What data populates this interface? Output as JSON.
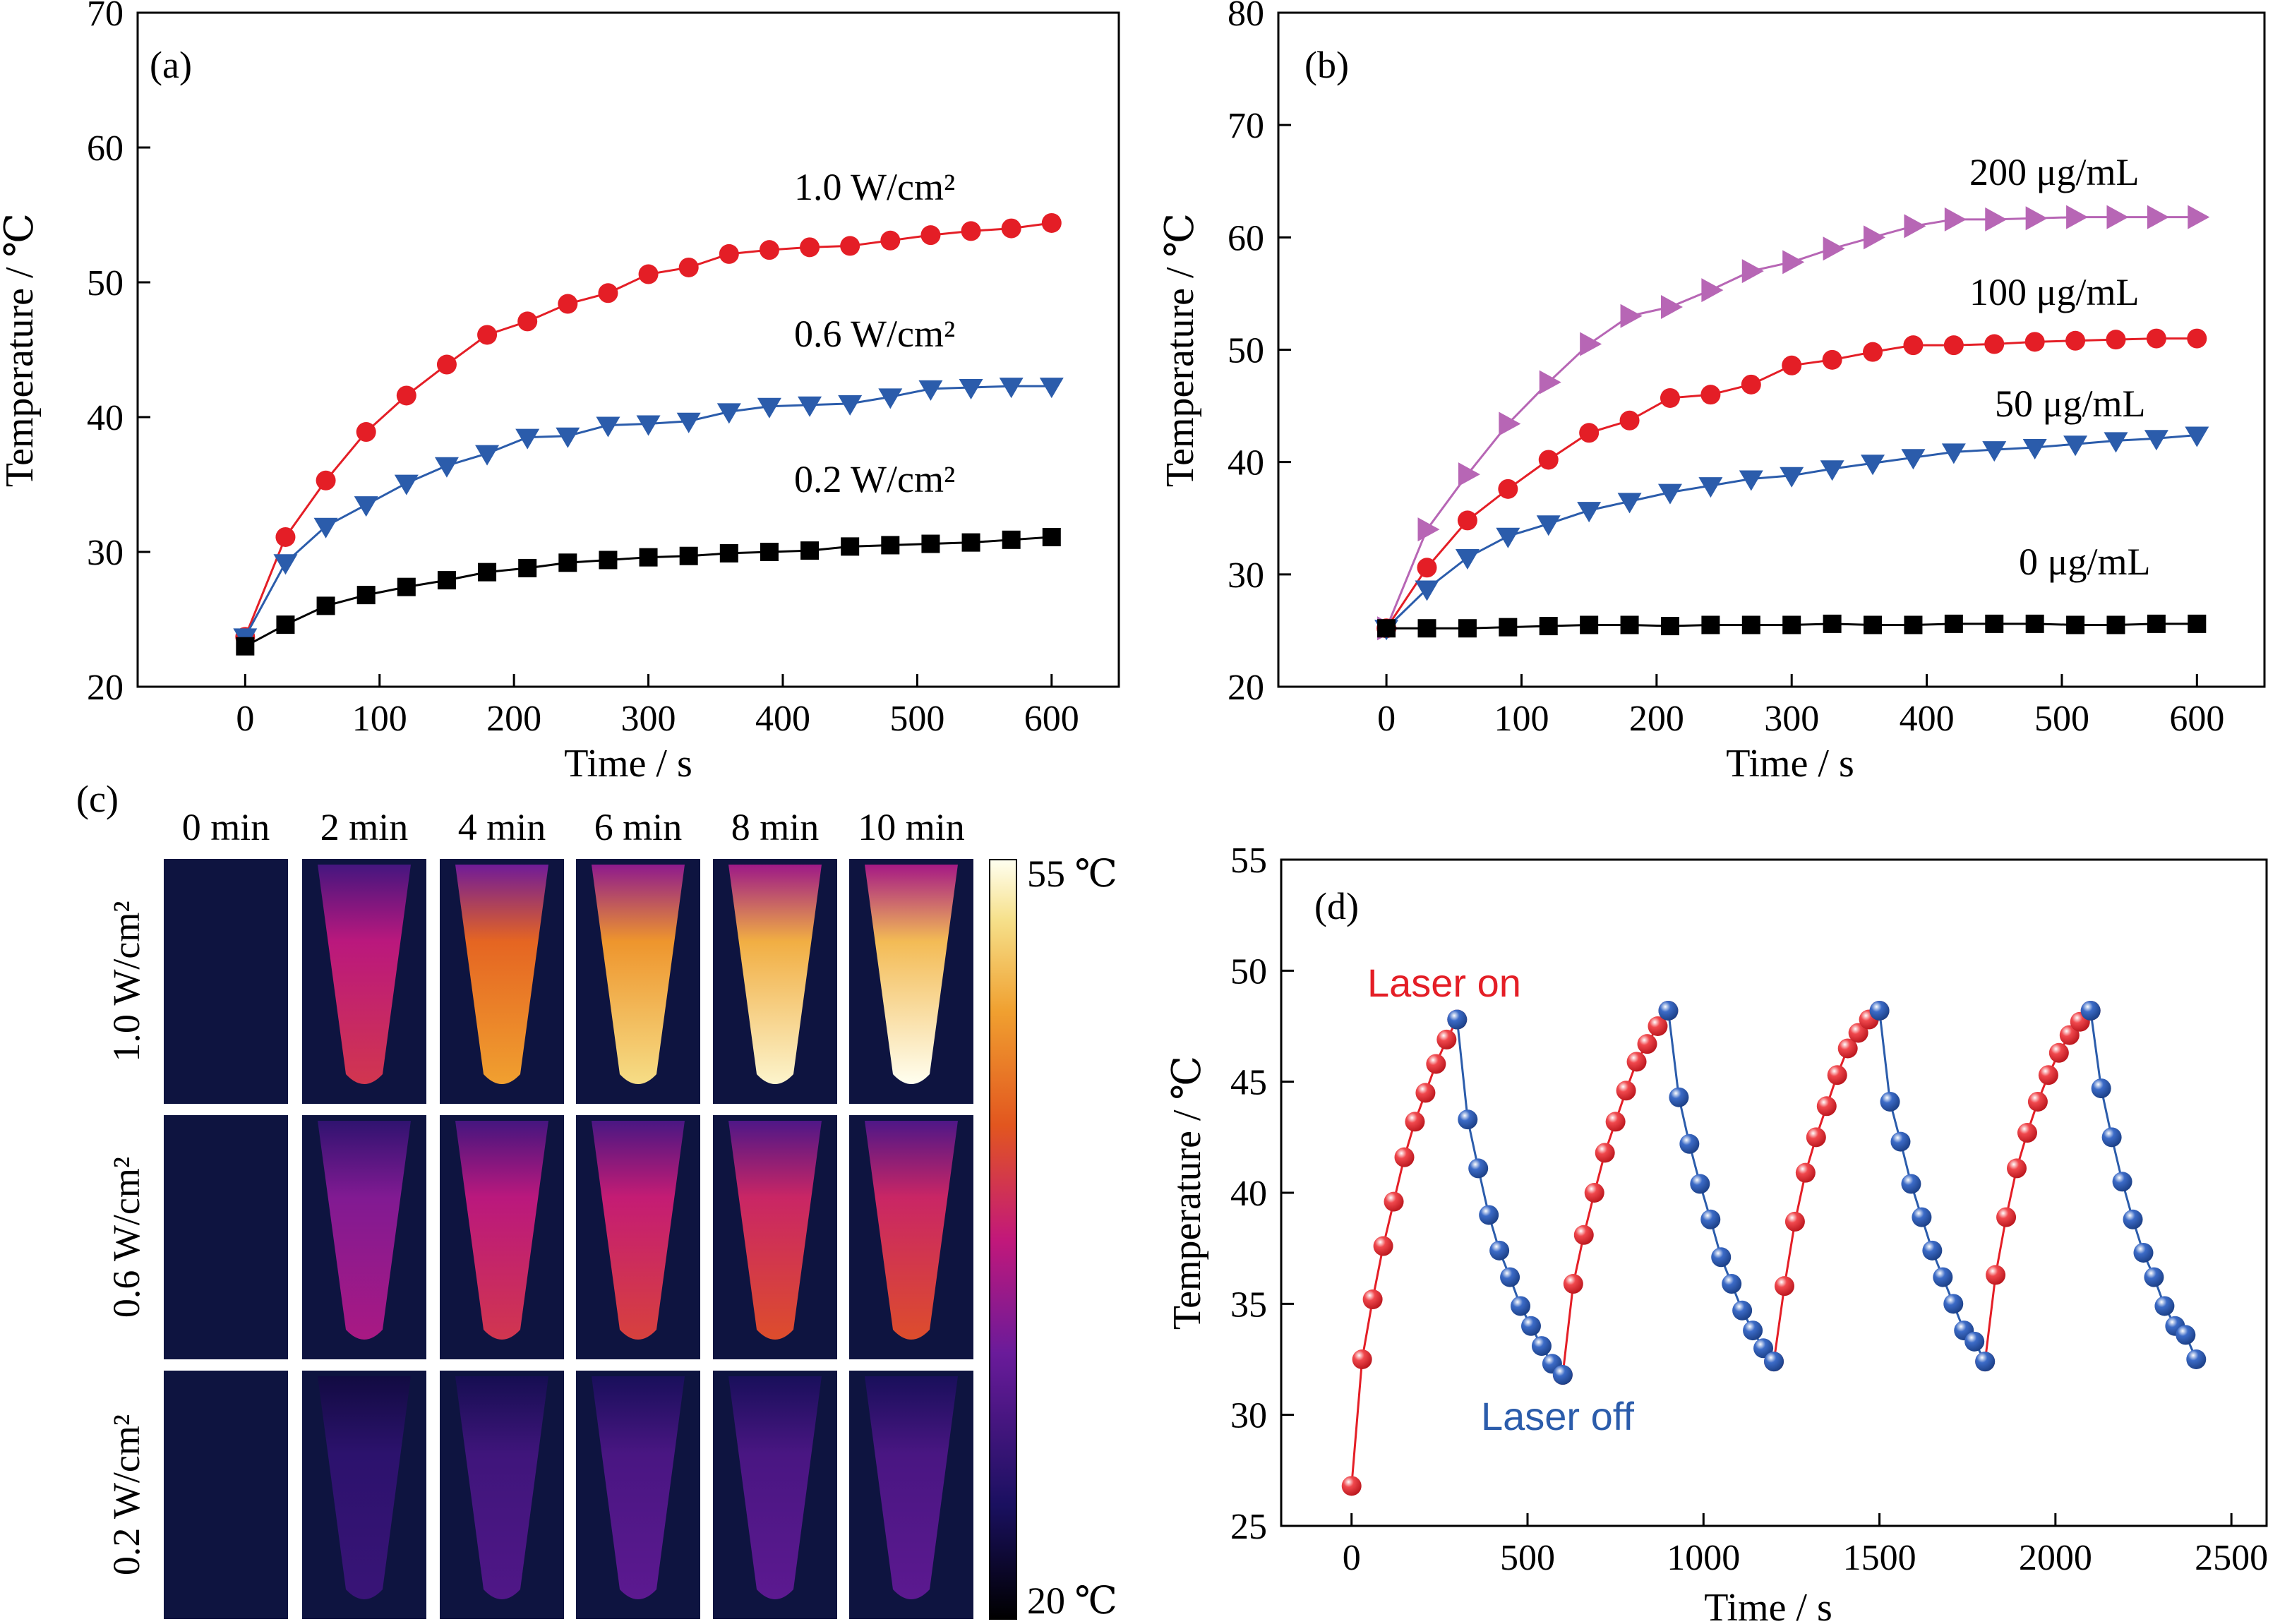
{
  "chart_data": [
    {
      "panel": "a",
      "type": "line",
      "panel_label": "(a)",
      "xlabel": "Time / s",
      "ylabel": "Temperature / ℃",
      "xlim": [
        -80,
        650
      ],
      "ylim": [
        20,
        70
      ],
      "xticks": [
        0,
        100,
        200,
        300,
        400,
        500,
        600
      ],
      "yticks": [
        20,
        30,
        40,
        50,
        60,
        70
      ],
      "x": [
        0,
        30,
        60,
        90,
        120,
        150,
        180,
        210,
        240,
        270,
        300,
        330,
        360,
        390,
        420,
        450,
        480,
        510,
        540,
        570,
        600
      ],
      "series": [
        {
          "name": "1.0 W/cm²",
          "color": "#e41e26",
          "marker": "circle",
          "values": [
            23.7,
            31.1,
            35.3,
            38.9,
            41.6,
            43.9,
            46.1,
            47.1,
            48.4,
            49.2,
            50.6,
            51.1,
            52.1,
            52.4,
            52.6,
            52.7,
            53.1,
            53.5,
            53.8,
            54.0,
            54.4
          ]
        },
        {
          "name": "0.6 W/cm²",
          "color": "#2b5cab",
          "marker": "triangle-down",
          "values": [
            23.7,
            29.2,
            31.9,
            33.5,
            35.1,
            36.4,
            37.3,
            38.5,
            38.6,
            39.4,
            39.5,
            39.7,
            40.4,
            40.8,
            40.9,
            41.0,
            41.5,
            42.1,
            42.2,
            42.3,
            42.3
          ]
        },
        {
          "name": "0.2 W/cm²",
          "color": "#000000",
          "marker": "square",
          "values": [
            23.0,
            24.6,
            26.0,
            26.8,
            27.4,
            27.9,
            28.5,
            28.8,
            29.2,
            29.4,
            29.6,
            29.7,
            29.9,
            30.0,
            30.1,
            30.4,
            30.5,
            30.6,
            30.7,
            30.9,
            31.1
          ]
        }
      ]
    },
    {
      "panel": "b",
      "type": "line",
      "panel_label": "(b)",
      "xlabel": "Time / s",
      "ylabel": "Temperature / ℃",
      "xlim": [
        -80,
        650
      ],
      "ylim": [
        20,
        80
      ],
      "xticks": [
        0,
        100,
        200,
        300,
        400,
        500,
        600
      ],
      "yticks": [
        20,
        30,
        40,
        50,
        60,
        70,
        80
      ],
      "x": [
        0,
        30,
        60,
        90,
        120,
        150,
        180,
        210,
        240,
        270,
        300,
        330,
        360,
        390,
        420,
        450,
        480,
        510,
        540,
        570,
        600
      ],
      "series": [
        {
          "name": "200 μg/mL",
          "color": "#b766b5",
          "marker": "triangle-right",
          "values": [
            25.2,
            34.0,
            38.9,
            43.4,
            47.1,
            50.5,
            53.0,
            53.8,
            55.3,
            57.0,
            57.8,
            59.0,
            60.0,
            61.0,
            61.6,
            61.6,
            61.7,
            61.8,
            61.8,
            61.8,
            61.8
          ]
        },
        {
          "name": "100 μg/mL",
          "color": "#e41e26",
          "marker": "circle",
          "values": [
            25.2,
            30.6,
            34.8,
            37.6,
            40.2,
            42.6,
            43.7,
            45.7,
            46.0,
            46.9,
            48.6,
            49.1,
            49.8,
            50.4,
            50.4,
            50.5,
            50.7,
            50.8,
            50.9,
            51.0,
            51.0
          ]
        },
        {
          "name": "50 μg/mL",
          "color": "#2b5cab",
          "marker": "triangle-down",
          "values": [
            25.2,
            28.7,
            31.5,
            33.4,
            34.5,
            35.7,
            36.5,
            37.3,
            37.9,
            38.5,
            38.8,
            39.4,
            39.9,
            40.4,
            40.9,
            41.1,
            41.3,
            41.6,
            41.9,
            42.1,
            42.4
          ]
        },
        {
          "name": "0 μg/mL",
          "color": "#000000",
          "marker": "square",
          "values": [
            25.2,
            25.2,
            25.2,
            25.3,
            25.4,
            25.5,
            25.5,
            25.4,
            25.5,
            25.5,
            25.5,
            25.6,
            25.5,
            25.5,
            25.6,
            25.6,
            25.6,
            25.5,
            25.5,
            25.6,
            25.6
          ]
        }
      ]
    },
    {
      "panel": "c",
      "type": "heatmap",
      "panel_label": "(c)",
      "columns": [
        "0 min",
        "2 min",
        "4 min",
        "6 min",
        "8 min",
        "10 min"
      ],
      "rows": [
        "1.0 W/cm²",
        "0.6 W/cm²",
        "0.2 W/cm²"
      ],
      "colorbar_max_label": "55 ℃",
      "colorbar_min_label": "20 ℃",
      "colorbar_range": [
        20,
        55
      ],
      "peak_temperature": [
        [
          20,
          40,
          48,
          52,
          54,
          55
        ],
        [
          20,
          36,
          40,
          41,
          42,
          42
        ],
        [
          20,
          28,
          30,
          31,
          31,
          31
        ]
      ]
    },
    {
      "panel": "d",
      "type": "line",
      "panel_label": "(d)",
      "xlabel": "Time / s",
      "ylabel": "Temperature / ℃",
      "xlim": [
        -200,
        2600
      ],
      "ylim": [
        25,
        55
      ],
      "xticks": [
        0,
        500,
        1000,
        1500,
        2000,
        2500
      ],
      "yticks": [
        25,
        30,
        35,
        40,
        45,
        50,
        55
      ],
      "annotations": {
        "laser_on": "Laser on",
        "laser_off": "Laser off"
      },
      "series": [
        {
          "name": "Laser on",
          "color": "#e41e26",
          "x": [
            0,
            30,
            60,
            90,
            120,
            150,
            180,
            210,
            240,
            270,
            300,
            600,
            630,
            660,
            690,
            720,
            750,
            780,
            810,
            840,
            870,
            900,
            1200,
            1230,
            1260,
            1290,
            1320,
            1350,
            1380,
            1410,
            1440,
            1470,
            1500,
            1800,
            1830,
            1860,
            1890,
            1920,
            1950,
            1980,
            2010,
            2040,
            2070,
            2100
          ],
          "values": [
            26.8,
            32.5,
            35.2,
            37.6,
            39.6,
            41.6,
            43.2,
            44.5,
            45.8,
            46.9,
            47.8,
            31.8,
            35.9,
            38.1,
            40.0,
            41.8,
            43.2,
            44.6,
            45.9,
            46.7,
            47.5,
            48.2,
            32.4,
            35.8,
            38.7,
            40.9,
            42.5,
            43.9,
            45.3,
            46.5,
            47.2,
            47.8,
            48.2,
            32.4,
            36.3,
            38.9,
            41.1,
            42.7,
            44.1,
            45.3,
            46.3,
            47.1,
            47.7,
            48.2
          ]
        },
        {
          "name": "Laser off",
          "color": "#2b5cab",
          "x": [
            300,
            330,
            360,
            390,
            420,
            450,
            480,
            510,
            540,
            570,
            600,
            900,
            930,
            960,
            990,
            1020,
            1050,
            1080,
            1110,
            1140,
            1170,
            1200,
            1500,
            1530,
            1560,
            1590,
            1620,
            1650,
            1680,
            1710,
            1740,
            1770,
            1800,
            2100,
            2130,
            2160,
            2190,
            2220,
            2250,
            2280,
            2310,
            2340,
            2370,
            2400
          ],
          "values": [
            47.8,
            43.3,
            41.1,
            39.0,
            37.4,
            36.2,
            34.9,
            34.0,
            33.1,
            32.3,
            31.8,
            48.2,
            44.3,
            42.2,
            40.4,
            38.8,
            37.1,
            35.9,
            34.7,
            33.8,
            33.0,
            32.4,
            48.2,
            44.1,
            42.3,
            40.4,
            38.9,
            37.4,
            36.2,
            35.0,
            33.8,
            33.3,
            32.4,
            48.2,
            44.7,
            42.5,
            40.5,
            38.8,
            37.3,
            36.2,
            34.9,
            34.0,
            33.6,
            32.5
          ]
        }
      ]
    }
  ]
}
